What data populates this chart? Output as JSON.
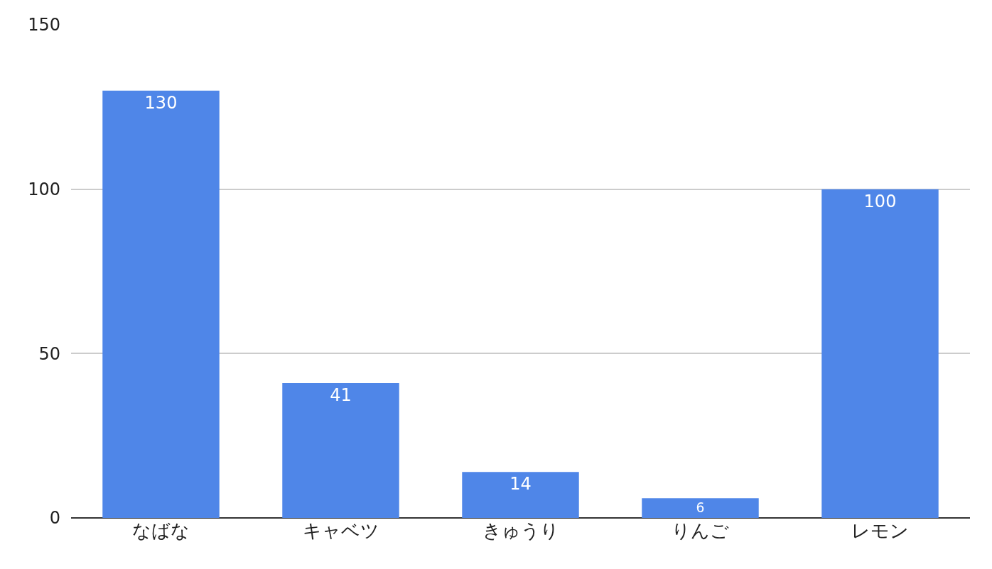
{
  "chart_data": {
    "type": "bar",
    "categories": [
      "なばな",
      "キャベツ",
      "きゅうり",
      "りんご",
      "レモン"
    ],
    "values": [
      130,
      41,
      14,
      6,
      100
    ],
    "color": "#4f86e8",
    "ylim": [
      0,
      150
    ],
    "yticks": [
      0,
      50,
      100,
      150
    ],
    "grid": "y",
    "data_labels": true
  }
}
